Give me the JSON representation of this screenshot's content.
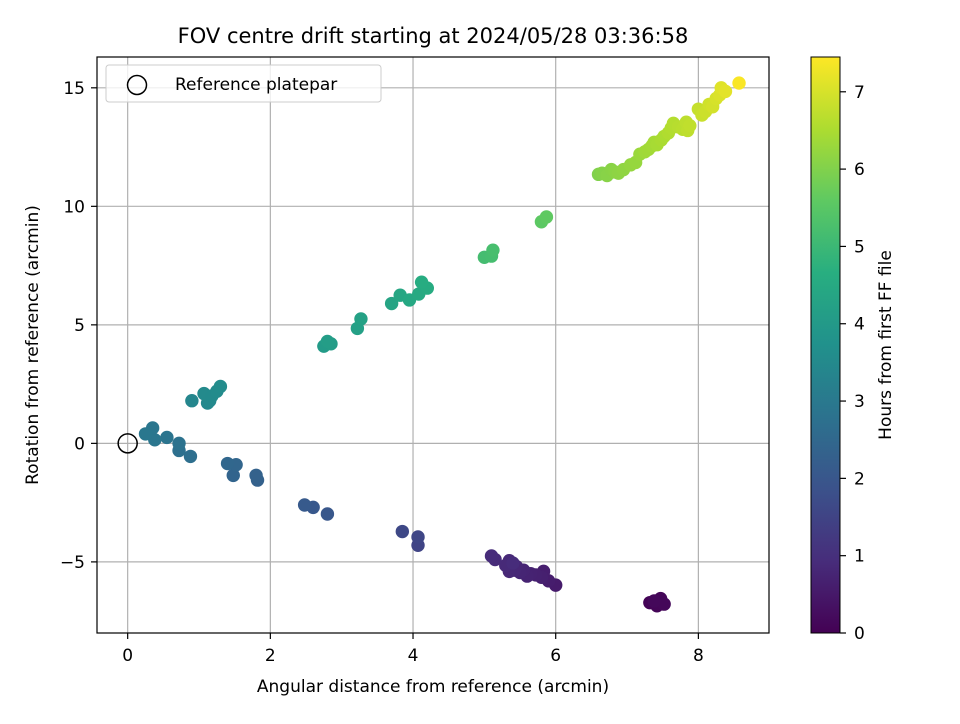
{
  "chart_data": {
    "type": "scatter",
    "title": "FOV centre drift starting at 2024/05/28 03:36:58",
    "xlabel": "Angular distance from reference (arcmin)",
    "ylabel": "Rotation from reference (arcmin)",
    "xlim": [
      -0.43,
      8.99
    ],
    "ylim": [
      -8.0,
      16.3
    ],
    "xticks": [
      0,
      2,
      4,
      6,
      8
    ],
    "yticks": [
      -5,
      0,
      5,
      10,
      15
    ],
    "grid": true,
    "legend": {
      "placement": "top-left",
      "entries": [
        {
          "label": "Reference platepar",
          "marker": "open-circle"
        }
      ]
    },
    "reference_point": {
      "x": 0,
      "y": 0
    },
    "colorbar": {
      "label": "Hours from first FF file",
      "range": [
        0,
        7.45
      ],
      "ticks": [
        0,
        1,
        2,
        3,
        4,
        5,
        6,
        7
      ],
      "colormap": "viridis"
    },
    "series": [
      {
        "points": [
          {
            "x": 7.32,
            "y": -6.72,
            "c": 0.05
          },
          {
            "x": 7.42,
            "y": -6.85,
            "c": 0.08
          },
          {
            "x": 7.47,
            "y": -6.55,
            "c": 0.1
          },
          {
            "x": 7.52,
            "y": -6.78,
            "c": 0.12
          },
          {
            "x": 7.38,
            "y": -6.65,
            "c": 0.15
          },
          {
            "x": 6.0,
            "y": -5.98,
            "c": 0.55
          },
          {
            "x": 5.9,
            "y": -5.8,
            "c": 0.6
          },
          {
            "x": 5.83,
            "y": -5.4,
            "c": 0.62
          },
          {
            "x": 5.8,
            "y": -5.65,
            "c": 0.65
          },
          {
            "x": 5.72,
            "y": -5.55,
            "c": 0.68
          },
          {
            "x": 5.65,
            "y": -5.5,
            "c": 0.7
          },
          {
            "x": 5.6,
            "y": -5.6,
            "c": 0.72
          },
          {
            "x": 5.55,
            "y": -5.35,
            "c": 0.74
          },
          {
            "x": 5.5,
            "y": -5.45,
            "c": 0.76
          },
          {
            "x": 5.45,
            "y": -5.2,
            "c": 0.78
          },
          {
            "x": 5.42,
            "y": -5.35,
            "c": 0.8
          },
          {
            "x": 5.35,
            "y": -5.4,
            "c": 0.82
          },
          {
            "x": 5.35,
            "y": -4.95,
            "c": 0.84
          },
          {
            "x": 5.3,
            "y": -5.15,
            "c": 0.86
          },
          {
            "x": 5.15,
            "y": -4.9,
            "c": 0.88
          },
          {
            "x": 5.1,
            "y": -4.75,
            "c": 0.9
          },
          {
            "x": 5.4,
            "y": -5.05,
            "c": 0.92
          },
          {
            "x": 4.07,
            "y": -4.3,
            "c": 1.5
          },
          {
            "x": 4.07,
            "y": -3.95,
            "c": 1.55
          },
          {
            "x": 3.85,
            "y": -3.72,
            "c": 1.6
          },
          {
            "x": 2.8,
            "y": -2.98,
            "c": 2.0
          },
          {
            "x": 2.6,
            "y": -2.7,
            "c": 2.05
          },
          {
            "x": 2.48,
            "y": -2.6,
            "c": 2.1
          },
          {
            "x": 1.82,
            "y": -1.55,
            "c": 2.3
          },
          {
            "x": 1.8,
            "y": -1.35,
            "c": 2.32
          },
          {
            "x": 1.48,
            "y": -1.35,
            "c": 2.4
          },
          {
            "x": 1.52,
            "y": -0.9,
            "c": 2.45
          },
          {
            "x": 1.4,
            "y": -0.85,
            "c": 2.48
          },
          {
            "x": 0.88,
            "y": -0.55,
            "c": 2.7
          },
          {
            "x": 0.72,
            "y": -0.3,
            "c": 2.75
          },
          {
            "x": 0.72,
            "y": 0.0,
            "c": 2.8
          },
          {
            "x": 0.55,
            "y": 0.25,
            "c": 2.85
          },
          {
            "x": 0.38,
            "y": 0.15,
            "c": 2.9
          },
          {
            "x": 0.35,
            "y": 0.65,
            "c": 2.92
          },
          {
            "x": 0.25,
            "y": 0.4,
            "c": 2.95
          },
          {
            "x": 0.9,
            "y": 1.8,
            "c": 3.4
          },
          {
            "x": 1.12,
            "y": 1.7,
            "c": 3.45
          },
          {
            "x": 1.15,
            "y": 1.8,
            "c": 3.48
          },
          {
            "x": 1.07,
            "y": 2.1,
            "c": 3.5
          },
          {
            "x": 1.18,
            "y": 2.0,
            "c": 3.52
          },
          {
            "x": 1.25,
            "y": 2.2,
            "c": 3.55
          },
          {
            "x": 1.3,
            "y": 2.4,
            "c": 3.58
          },
          {
            "x": 2.75,
            "y": 4.1,
            "c": 4.05
          },
          {
            "x": 2.85,
            "y": 4.2,
            "c": 4.08
          },
          {
            "x": 2.8,
            "y": 4.3,
            "c": 4.1
          },
          {
            "x": 3.22,
            "y": 4.85,
            "c": 4.2
          },
          {
            "x": 3.27,
            "y": 5.25,
            "c": 4.25
          },
          {
            "x": 3.7,
            "y": 5.9,
            "c": 4.35
          },
          {
            "x": 3.82,
            "y": 6.25,
            "c": 4.4
          },
          {
            "x": 3.95,
            "y": 6.05,
            "c": 4.45
          },
          {
            "x": 4.08,
            "y": 6.3,
            "c": 4.5
          },
          {
            "x": 4.2,
            "y": 6.55,
            "c": 4.55
          },
          {
            "x": 4.12,
            "y": 6.8,
            "c": 4.58
          },
          {
            "x": 5.0,
            "y": 7.85,
            "c": 5.15
          },
          {
            "x": 5.1,
            "y": 7.9,
            "c": 5.18
          },
          {
            "x": 5.12,
            "y": 8.15,
            "c": 5.2
          },
          {
            "x": 5.8,
            "y": 9.35,
            "c": 5.55
          },
          {
            "x": 5.87,
            "y": 9.55,
            "c": 5.6
          },
          {
            "x": 6.6,
            "y": 11.35,
            "c": 6.0
          },
          {
            "x": 6.65,
            "y": 11.4,
            "c": 6.05
          },
          {
            "x": 6.72,
            "y": 11.3,
            "c": 6.08
          },
          {
            "x": 6.78,
            "y": 11.55,
            "c": 6.1
          },
          {
            "x": 6.83,
            "y": 11.45,
            "c": 6.12
          },
          {
            "x": 6.88,
            "y": 11.4,
            "c": 6.15
          },
          {
            "x": 6.95,
            "y": 11.55,
            "c": 6.18
          },
          {
            "x": 7.05,
            "y": 11.75,
            "c": 6.22
          },
          {
            "x": 7.12,
            "y": 11.85,
            "c": 6.25
          },
          {
            "x": 7.18,
            "y": 12.2,
            "c": 6.3
          },
          {
            "x": 7.25,
            "y": 12.3,
            "c": 6.35
          },
          {
            "x": 7.3,
            "y": 12.4,
            "c": 6.38
          },
          {
            "x": 7.35,
            "y": 12.55,
            "c": 6.4
          },
          {
            "x": 7.38,
            "y": 12.7,
            "c": 6.42
          },
          {
            "x": 7.42,
            "y": 12.6,
            "c": 6.45
          },
          {
            "x": 7.48,
            "y": 12.8,
            "c": 6.48
          },
          {
            "x": 7.52,
            "y": 12.95,
            "c": 6.5
          },
          {
            "x": 7.58,
            "y": 13.1,
            "c": 6.55
          },
          {
            "x": 7.62,
            "y": 13.3,
            "c": 6.58
          },
          {
            "x": 7.65,
            "y": 13.5,
            "c": 6.6
          },
          {
            "x": 7.72,
            "y": 13.35,
            "c": 6.63
          },
          {
            "x": 7.78,
            "y": 13.25,
            "c": 6.66
          },
          {
            "x": 7.83,
            "y": 13.55,
            "c": 6.7
          },
          {
            "x": 7.85,
            "y": 13.2,
            "c": 6.72
          },
          {
            "x": 7.88,
            "y": 13.4,
            "c": 6.74
          },
          {
            "x": 8.0,
            "y": 14.1,
            "c": 6.8
          },
          {
            "x": 8.05,
            "y": 13.85,
            "c": 6.84
          },
          {
            "x": 8.1,
            "y": 14.0,
            "c": 6.88
          },
          {
            "x": 8.15,
            "y": 14.3,
            "c": 6.92
          },
          {
            "x": 8.2,
            "y": 14.2,
            "c": 6.96
          },
          {
            "x": 8.25,
            "y": 14.55,
            "c": 7.0
          },
          {
            "x": 8.3,
            "y": 14.7,
            "c": 7.05
          },
          {
            "x": 8.32,
            "y": 15.0,
            "c": 7.1
          },
          {
            "x": 8.38,
            "y": 14.85,
            "c": 7.15
          },
          {
            "x": 8.57,
            "y": 15.2,
            "c": 7.4
          }
        ]
      }
    ]
  }
}
